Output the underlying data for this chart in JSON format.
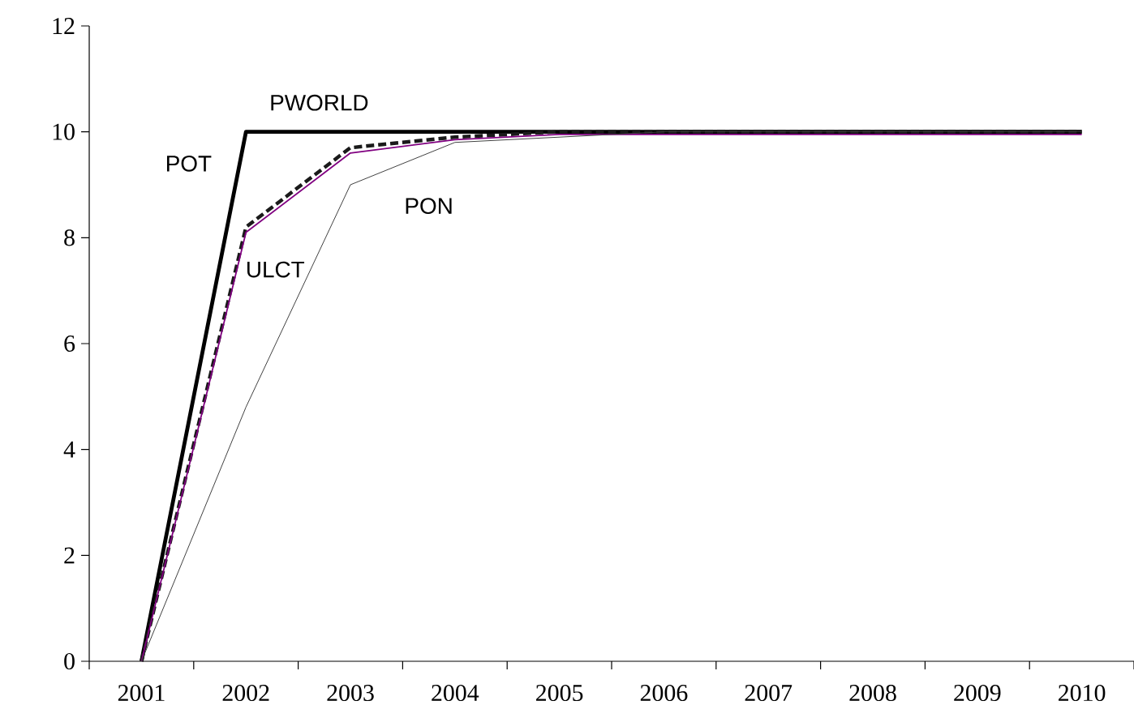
{
  "chart_data": {
    "type": "line",
    "categories": [
      "2001",
      "2002",
      "2003",
      "2004",
      "2005",
      "2006",
      "2007",
      "2008",
      "2009",
      "2010"
    ],
    "series": [
      {
        "color": "#000000",
        "line_style": "solid",
        "values": [
          0,
          10,
          10,
          10,
          10,
          10,
          10,
          10,
          10,
          10
        ]
      },
      {
        "color": "#1a1a1a",
        "line_style": "dashed",
        "values": [
          0,
          8.2,
          9.7,
          9.9,
          10,
          10,
          10,
          10,
          10,
          10
        ]
      },
      {
        "color": "#800080",
        "line_style": "solid",
        "values": [
          0,
          8.1,
          9.6,
          9.85,
          9.95,
          9.95,
          9.95,
          9.95,
          9.95,
          9.95
        ]
      },
      {
        "color": "#404040",
        "line_style": "solid",
        "values": [
          0,
          4.8,
          9.0,
          9.8,
          9.9,
          10,
          10,
          10,
          10,
          10
        ]
      }
    ],
    "annotations": [
      "PWORLD",
      "POT",
      "ULCT",
      "PON"
    ],
    "ylim": [
      0,
      12
    ],
    "yticks": [
      0,
      2,
      4,
      6,
      8,
      10,
      12
    ],
    "grid": false,
    "marker": "none"
  }
}
